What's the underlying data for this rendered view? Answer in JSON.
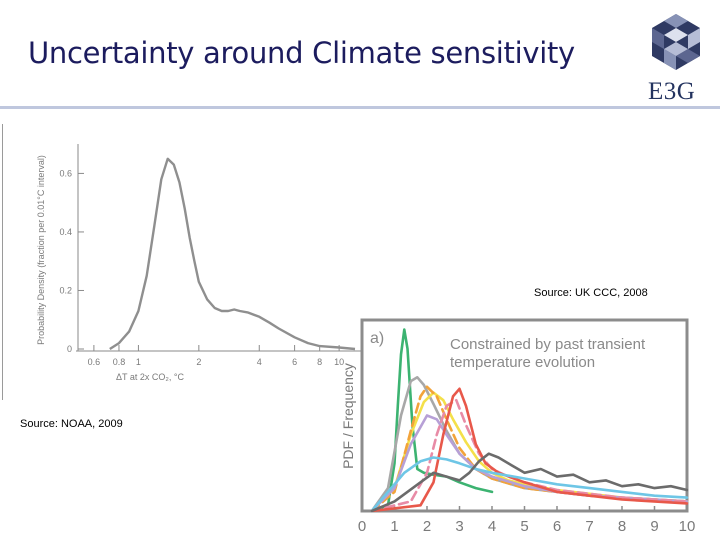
{
  "slide": {
    "title": "Uncertainty around Climate sensitivity",
    "logo_text": "E3G",
    "source_right": "Source: UK CCC, 2008",
    "source_left": "Source: NOAA, 2009"
  },
  "chart_data": [
    {
      "type": "area",
      "title": "",
      "ylabel": "Probability Density (fraction per 0.01°C interval)",
      "xlabel": "ΔT at 2x CO₂, °C",
      "xscale": "log",
      "xlim": [
        0.5,
        13
      ],
      "ylim": [
        0,
        0.68
      ],
      "x_ticks": [
        0.6,
        0.8,
        1,
        2,
        4,
        6,
        8,
        10
      ],
      "x_tick_labels": [
        "0.6",
        "0.8",
        "1",
        "2",
        "4",
        "6",
        "8",
        "10"
      ],
      "y_ticks": [
        0,
        0.2,
        0.4,
        0.6
      ],
      "y_tick_labels": [
        "0",
        "0.2",
        "0.4",
        "0.6"
      ],
      "series": [
        {
          "name": "pdf",
          "x": [
            0.72,
            0.8,
            0.9,
            1.0,
            1.1,
            1.2,
            1.3,
            1.4,
            1.5,
            1.6,
            1.7,
            1.8,
            1.9,
            2.0,
            2.2,
            2.4,
            2.6,
            2.8,
            3.0,
            3.2,
            3.5,
            4.0,
            4.5,
            5.0,
            6.0,
            7.0,
            8.0,
            10.0,
            12.0
          ],
          "y": [
            0.0,
            0.02,
            0.06,
            0.13,
            0.25,
            0.42,
            0.58,
            0.65,
            0.63,
            0.57,
            0.48,
            0.38,
            0.3,
            0.23,
            0.17,
            0.14,
            0.13,
            0.13,
            0.135,
            0.13,
            0.125,
            0.11,
            0.09,
            0.07,
            0.04,
            0.02,
            0.01,
            0.005,
            0.0
          ]
        }
      ]
    },
    {
      "type": "line",
      "title": "Constrained by past transient temperature evolution",
      "panel_label": "a)",
      "ylabel": "PDF / Frequency",
      "xlabel": "",
      "xlim": [
        0,
        10
      ],
      "ylim": [
        0,
        1
      ],
      "x_ticks": [
        0,
        1,
        2,
        3,
        4,
        5,
        6,
        7,
        8,
        9,
        10
      ],
      "x_tick_labels": [
        "0",
        "1",
        "2",
        "3",
        "4",
        "5",
        "6",
        "7",
        "8",
        "9",
        "10"
      ],
      "series": [
        {
          "name": "green",
          "color": "#3cb371",
          "dash": false,
          "x": [
            0.3,
            0.8,
            1.0,
            1.1,
            1.2,
            1.3,
            1.4,
            1.55,
            1.7,
            1.9,
            2.2,
            2.6,
            3.0,
            3.5,
            4.0
          ],
          "y": [
            0.0,
            0.03,
            0.25,
            0.55,
            0.82,
            0.95,
            0.85,
            0.45,
            0.22,
            0.2,
            0.19,
            0.18,
            0.15,
            0.12,
            0.1
          ]
        },
        {
          "name": "gray-light",
          "color": "#a8a8a8",
          "dash": false,
          "x": [
            0.3,
            0.8,
            1.2,
            1.5,
            1.7,
            1.9,
            2.2,
            2.6,
            3.0,
            3.5,
            4.0,
            5.0,
            6.0,
            7.0,
            8.0,
            9.0,
            10.0
          ],
          "y": [
            0.0,
            0.12,
            0.5,
            0.68,
            0.7,
            0.66,
            0.56,
            0.42,
            0.3,
            0.22,
            0.17,
            0.12,
            0.1,
            0.08,
            0.07,
            0.06,
            0.05
          ]
        },
        {
          "name": "yellow",
          "color": "#f4e04a",
          "dash": false,
          "x": [
            0.3,
            1.0,
            1.5,
            1.9,
            2.2,
            2.5,
            2.8,
            3.2,
            3.6,
            4.0,
            4.5,
            5.0,
            6.0,
            7.0,
            8.0,
            10.0
          ],
          "y": [
            0.0,
            0.12,
            0.4,
            0.57,
            0.62,
            0.58,
            0.48,
            0.36,
            0.26,
            0.2,
            0.16,
            0.14,
            0.11,
            0.09,
            0.07,
            0.05
          ]
        },
        {
          "name": "orange-dashed",
          "color": "#f2a33a",
          "dash": true,
          "x": [
            0.3,
            1.0,
            1.5,
            1.8,
            2.0,
            2.3,
            2.6,
            3.0,
            3.5,
            4.0,
            5.0,
            6.0,
            7.0,
            8.0,
            10.0
          ],
          "y": [
            0.0,
            0.1,
            0.42,
            0.6,
            0.65,
            0.6,
            0.48,
            0.33,
            0.22,
            0.17,
            0.12,
            0.1,
            0.08,
            0.07,
            0.05
          ]
        },
        {
          "name": "lavender",
          "color": "#b7a0d6",
          "dash": false,
          "x": [
            0.3,
            1.0,
            1.5,
            2.0,
            2.3,
            2.6,
            3.0,
            3.5,
            4.0,
            5.0,
            6.0,
            7.0,
            8.0,
            10.0
          ],
          "y": [
            0.0,
            0.12,
            0.35,
            0.5,
            0.48,
            0.4,
            0.3,
            0.22,
            0.18,
            0.13,
            0.1,
            0.08,
            0.07,
            0.05
          ]
        },
        {
          "name": "pink-dashed",
          "color": "#e88ba6",
          "dash": true,
          "x": [
            0.3,
            1.5,
            2.0,
            2.3,
            2.6,
            2.9,
            3.2,
            3.6,
            4.0,
            4.5,
            5.0,
            6.0,
            7.0,
            8.0,
            10.0
          ],
          "y": [
            0.0,
            0.05,
            0.2,
            0.4,
            0.55,
            0.58,
            0.45,
            0.3,
            0.22,
            0.18,
            0.15,
            0.11,
            0.09,
            0.07,
            0.05
          ]
        },
        {
          "name": "red",
          "color": "#e8584a",
          "dash": false,
          "x": [
            0.3,
            1.8,
            2.2,
            2.5,
            2.8,
            3.0,
            3.2,
            3.5,
            3.8,
            4.2,
            5.0,
            6.0,
            7.0,
            8.0,
            10.0
          ],
          "y": [
            0.0,
            0.03,
            0.15,
            0.4,
            0.6,
            0.64,
            0.55,
            0.35,
            0.25,
            0.2,
            0.15,
            0.1,
            0.08,
            0.06,
            0.04
          ]
        },
        {
          "name": "cyan",
          "color": "#6ec6e6",
          "dash": false,
          "x": [
            0.3,
            0.8,
            1.3,
            1.8,
            2.2,
            2.6,
            3.0,
            3.5,
            4.0,
            5.0,
            6.0,
            7.0,
            8.0,
            9.0,
            10.0
          ],
          "y": [
            0.0,
            0.1,
            0.2,
            0.26,
            0.28,
            0.27,
            0.25,
            0.22,
            0.2,
            0.17,
            0.14,
            0.12,
            0.1,
            0.08,
            0.07
          ]
        },
        {
          "name": "dark-gray",
          "color": "#6b6b6b",
          "dash": false,
          "x": [
            0.3,
            1.0,
            1.8,
            2.2,
            2.6,
            3.0,
            3.3,
            3.6,
            3.9,
            4.2,
            4.6,
            5.0,
            5.5,
            6.0,
            6.5,
            7.0,
            7.5,
            8.0,
            8.5,
            9.0,
            9.5,
            10.0
          ],
          "y": [
            0.0,
            0.05,
            0.15,
            0.2,
            0.18,
            0.16,
            0.2,
            0.26,
            0.3,
            0.28,
            0.24,
            0.2,
            0.22,
            0.18,
            0.19,
            0.15,
            0.16,
            0.13,
            0.14,
            0.12,
            0.13,
            0.11
          ]
        }
      ]
    }
  ]
}
